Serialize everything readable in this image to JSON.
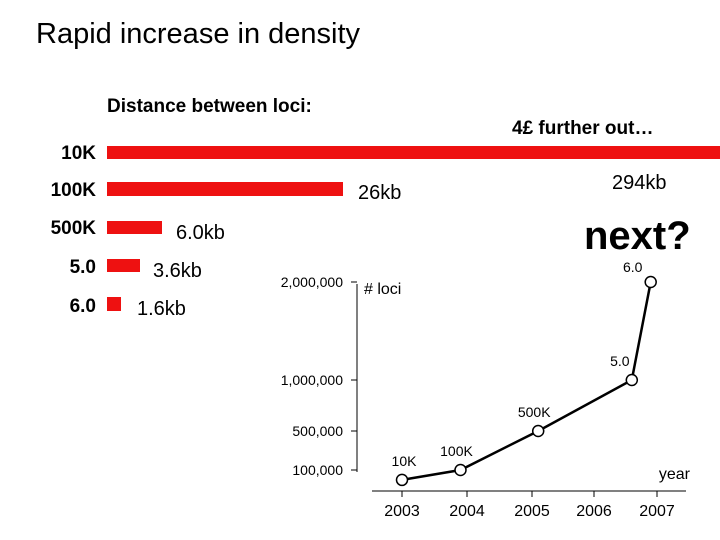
{
  "slide": {
    "title": "Rapid increase in density",
    "subtitle": "Distance between loci:",
    "further_out": "4£ further out…",
    "next_label": "next?"
  },
  "colors": {
    "bar": "#ee1111",
    "line": "#000000"
  },
  "chart_data": [
    {
      "type": "bar",
      "orientation": "horizontal",
      "categories": [
        "10K",
        "100K",
        "500K",
        "5.0",
        "6.0"
      ],
      "value_labels": [
        "294kb",
        "26kb",
        "6.0kb",
        "3.6kb",
        "1.6kb"
      ],
      "values": [
        294,
        26,
        6.0,
        3.6,
        1.6
      ],
      "unit": "kb"
    },
    {
      "type": "line",
      "ylabel": "# loci",
      "xlabel": "year",
      "x_ticks": [
        "2003",
        "2004",
        "2005",
        "2006",
        "2007"
      ],
      "y_ticks": [
        "2,000,000",
        "1,000,000",
        "500,000",
        "100,000"
      ],
      "points": [
        {
          "label": "10K",
          "x": 2003.0,
          "y": 10000
        },
        {
          "label": "100K",
          "x": 2003.9,
          "y": 100000
        },
        {
          "label": "500K",
          "x": 2005.1,
          "y": 500000
        },
        {
          "label": "5.0",
          "x": 2006.6,
          "y": 1000000
        },
        {
          "label": "6.0",
          "x": 2006.9,
          "y": 2000000
        }
      ]
    }
  ]
}
